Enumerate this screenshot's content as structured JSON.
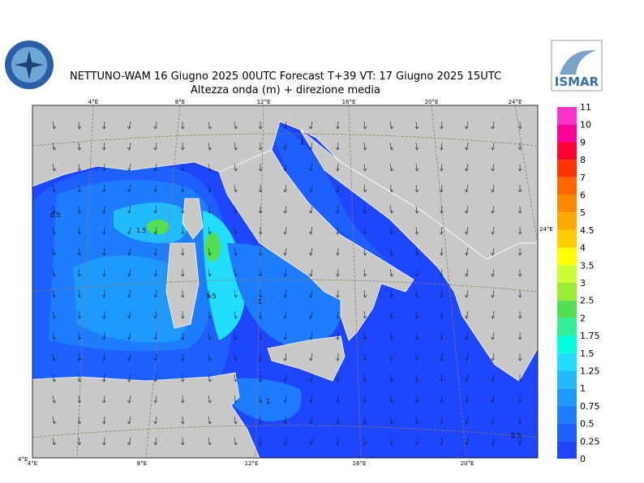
{
  "header": {
    "title": "NETTUNO-WAM  16   Giugno  2025 00UTC Forecast T+39 VT: 17   Giugno  2025 15UTC",
    "subtitle": "Altezza onda (m) + direzione media",
    "logo_text": "ISMAR"
  },
  "map": {
    "top_labels": [
      "4°E",
      "8°E",
      "12°E",
      "16°E",
      "20°E",
      "24°E"
    ],
    "bottom_labels": [
      "4°E",
      "8°E",
      "12°E",
      "16°E",
      "20°E"
    ],
    "right_label": "24°E",
    "corner_label": "4°E",
    "contour_labels": [
      "0.5",
      "1.5",
      "1.5",
      "1",
      "1",
      "1",
      "0.5"
    ]
  },
  "colorbar": {
    "levels": [
      11,
      10,
      9,
      8,
      7,
      6,
      5,
      4.5,
      4,
      3.5,
      3,
      2.5,
      2,
      1.75,
      1.5,
      1.25,
      1,
      0.75,
      0.5,
      0.25,
      0
    ],
    "colors": [
      "#ff33cc",
      "#ff0099",
      "#ff0033",
      "#ff3300",
      "#ff6600",
      "#ff8800",
      "#ffaa00",
      "#ffcc00",
      "#ffff00",
      "#ccff33",
      "#99ee33",
      "#55dd55",
      "#33ee99",
      "#00ffdd",
      "#22ddff",
      "#22bbff",
      "#1e99ff",
      "#1e7cff",
      "#1e60ff",
      "#1e46ff"
    ]
  }
}
